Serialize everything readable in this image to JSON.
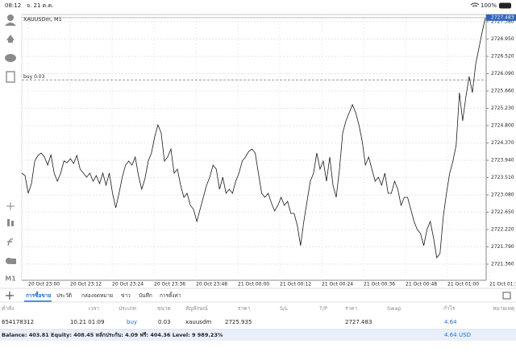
{
  "status_bar": {
    "time": "08:12",
    "date": "จ. 21 ต.ค.",
    "battery": "100%"
  },
  "toolbar": {
    "timeframe": "M1"
  },
  "chart": {
    "type": "line",
    "symbol": "XAUUSDm, M1",
    "color": "#1a1a1a",
    "ylim": [
      2720.96,
      2727.56
    ],
    "yticks": [
      {
        "value": 2727.38,
        "label": "2727.380"
      },
      {
        "value": 2726.95,
        "label": "2726.950"
      },
      {
        "value": 2726.52,
        "label": "2726.520"
      },
      {
        "value": 2726.09,
        "label": "2726.090"
      },
      {
        "value": 2725.66,
        "label": "2725.660"
      },
      {
        "value": 2725.23,
        "label": "2725.230"
      },
      {
        "value": 2724.8,
        "label": "2724.800"
      },
      {
        "value": 2724.37,
        "label": "2724.370"
      },
      {
        "value": 2723.94,
        "label": "2723.940"
      },
      {
        "value": 2723.51,
        "label": "2723.510"
      },
      {
        "value": 2723.08,
        "label": "2723.080"
      },
      {
        "value": 2722.65,
        "label": "2722.650"
      },
      {
        "value": 2722.22,
        "label": "2722.220"
      },
      {
        "value": 2721.79,
        "label": "2721.790"
      },
      {
        "value": 2721.36,
        "label": "2721.360"
      }
    ],
    "xlabels": [
      "20 Oct 23:00",
      "20 Oct 23:12",
      "20 Oct 23:24",
      "20 Oct 23:36",
      "20 Oct 23:48",
      "21 Oct 00:00",
      "21 Oct 00:12",
      "21 Oct 00:24",
      "21 Oct 00:36",
      "21 Oct 00:48",
      "21 Oct 01:00",
      "21 Oct 01:12"
    ],
    "values": [
      2723.62,
      2723.56,
      2723.12,
      2723.36,
      2723.92,
      2724.06,
      2724.12,
      2724.02,
      2723.82,
      2724.08,
      2723.62,
      2723.42,
      2723.62,
      2723.92,
      2723.88,
      2723.98,
      2723.86,
      2724.06,
      2723.72,
      2723.62,
      2723.52,
      2723.62,
      2723.42,
      2723.56,
      2723.36,
      2723.62,
      2723.32,
      2723.62,
      2723.12,
      2722.76,
      2723.12,
      2723.52,
      2723.82,
      2723.92,
      2723.82,
      2724.02,
      2723.56,
      2723.22,
      2723.48,
      2723.92,
      2724.12,
      2724.52,
      2724.82,
      2724.62,
      2723.92,
      2724.02,
      2724.22,
      2723.62,
      2723.72,
      2723.32,
      2723.02,
      2723.12,
      2722.82,
      2722.72,
      2722.42,
      2722.72,
      2723.02,
      2723.32,
      2723.52,
      2723.82,
      2723.72,
      2723.22,
      2723.52,
      2723.12,
      2723.22,
      2723.12,
      2723.42,
      2723.62,
      2723.92,
      2724.02,
      2724.16,
      2724.22,
      2724.12,
      2723.62,
      2723.12,
      2723.02,
      2723.12,
      2722.88,
      2722.68,
      2722.82,
      2723.02,
      2722.82,
      2722.92,
      2722.62,
      2722.62,
      2722.32,
      2721.82,
      2722.42,
      2722.92,
      2723.42,
      2723.62,
      2724.12,
      2723.72,
      2723.92,
      2723.42,
      2724.02,
      2723.32,
      2723.02,
      2723.72,
      2724.62,
      2724.92,
      2725.12,
      2725.32,
      2725.12,
      2724.82,
      2724.42,
      2723.82,
      2724.02,
      2723.72,
      2723.42,
      2723.52,
      2723.32,
      2723.62,
      2723.12,
      2723.12,
      2723.42,
      2723.22,
      2722.82,
      2723.02,
      2723.02,
      2722.72,
      2722.42,
      2722.22,
      2722.12,
      2721.82,
      2722.22,
      2722.42,
      2722.02,
      2721.52,
      2721.62,
      2722.52,
      2723.12,
      2723.62,
      2723.92,
      2724.32,
      2725.62,
      2724.92,
      2725.52,
      2726.02,
      2725.62,
      2726.32,
      2726.72,
      2727.12,
      2727.48
    ],
    "current_price": 2727.483,
    "order_line": {
      "label": "buy 0.03",
      "price": 2725.935
    }
  },
  "tabs": [
    "การซื้อขาย",
    "ประวัติ",
    "กล่องจดหมาย",
    "ข่าว",
    "บันทึก",
    "การตั้งค่า"
  ],
  "table": {
    "headers": [
      "คำสั่ง",
      "เวลา",
      "ประเภท",
      "ขนาด",
      "สัญลักษณ์",
      "ราคา",
      "S/L",
      "T/P",
      "ราคา",
      "Swap",
      "กำไร",
      "หมายเหตุ"
    ],
    "row": {
      "order": "654178312",
      "time": "10.21 01:09",
      "type": "buy",
      "volume": "0.03",
      "symbol": "xauusdm",
      "open_price": "2725.935",
      "price": "2727.483",
      "profit": "4.64"
    }
  },
  "summary": {
    "text": "Balance: 403.81 Equity: 408.45 หลักประกัน: 4.09 ฟรี: 404.36 Level: 9 989.23%",
    "profit": "4.64",
    "currency": "USD"
  }
}
